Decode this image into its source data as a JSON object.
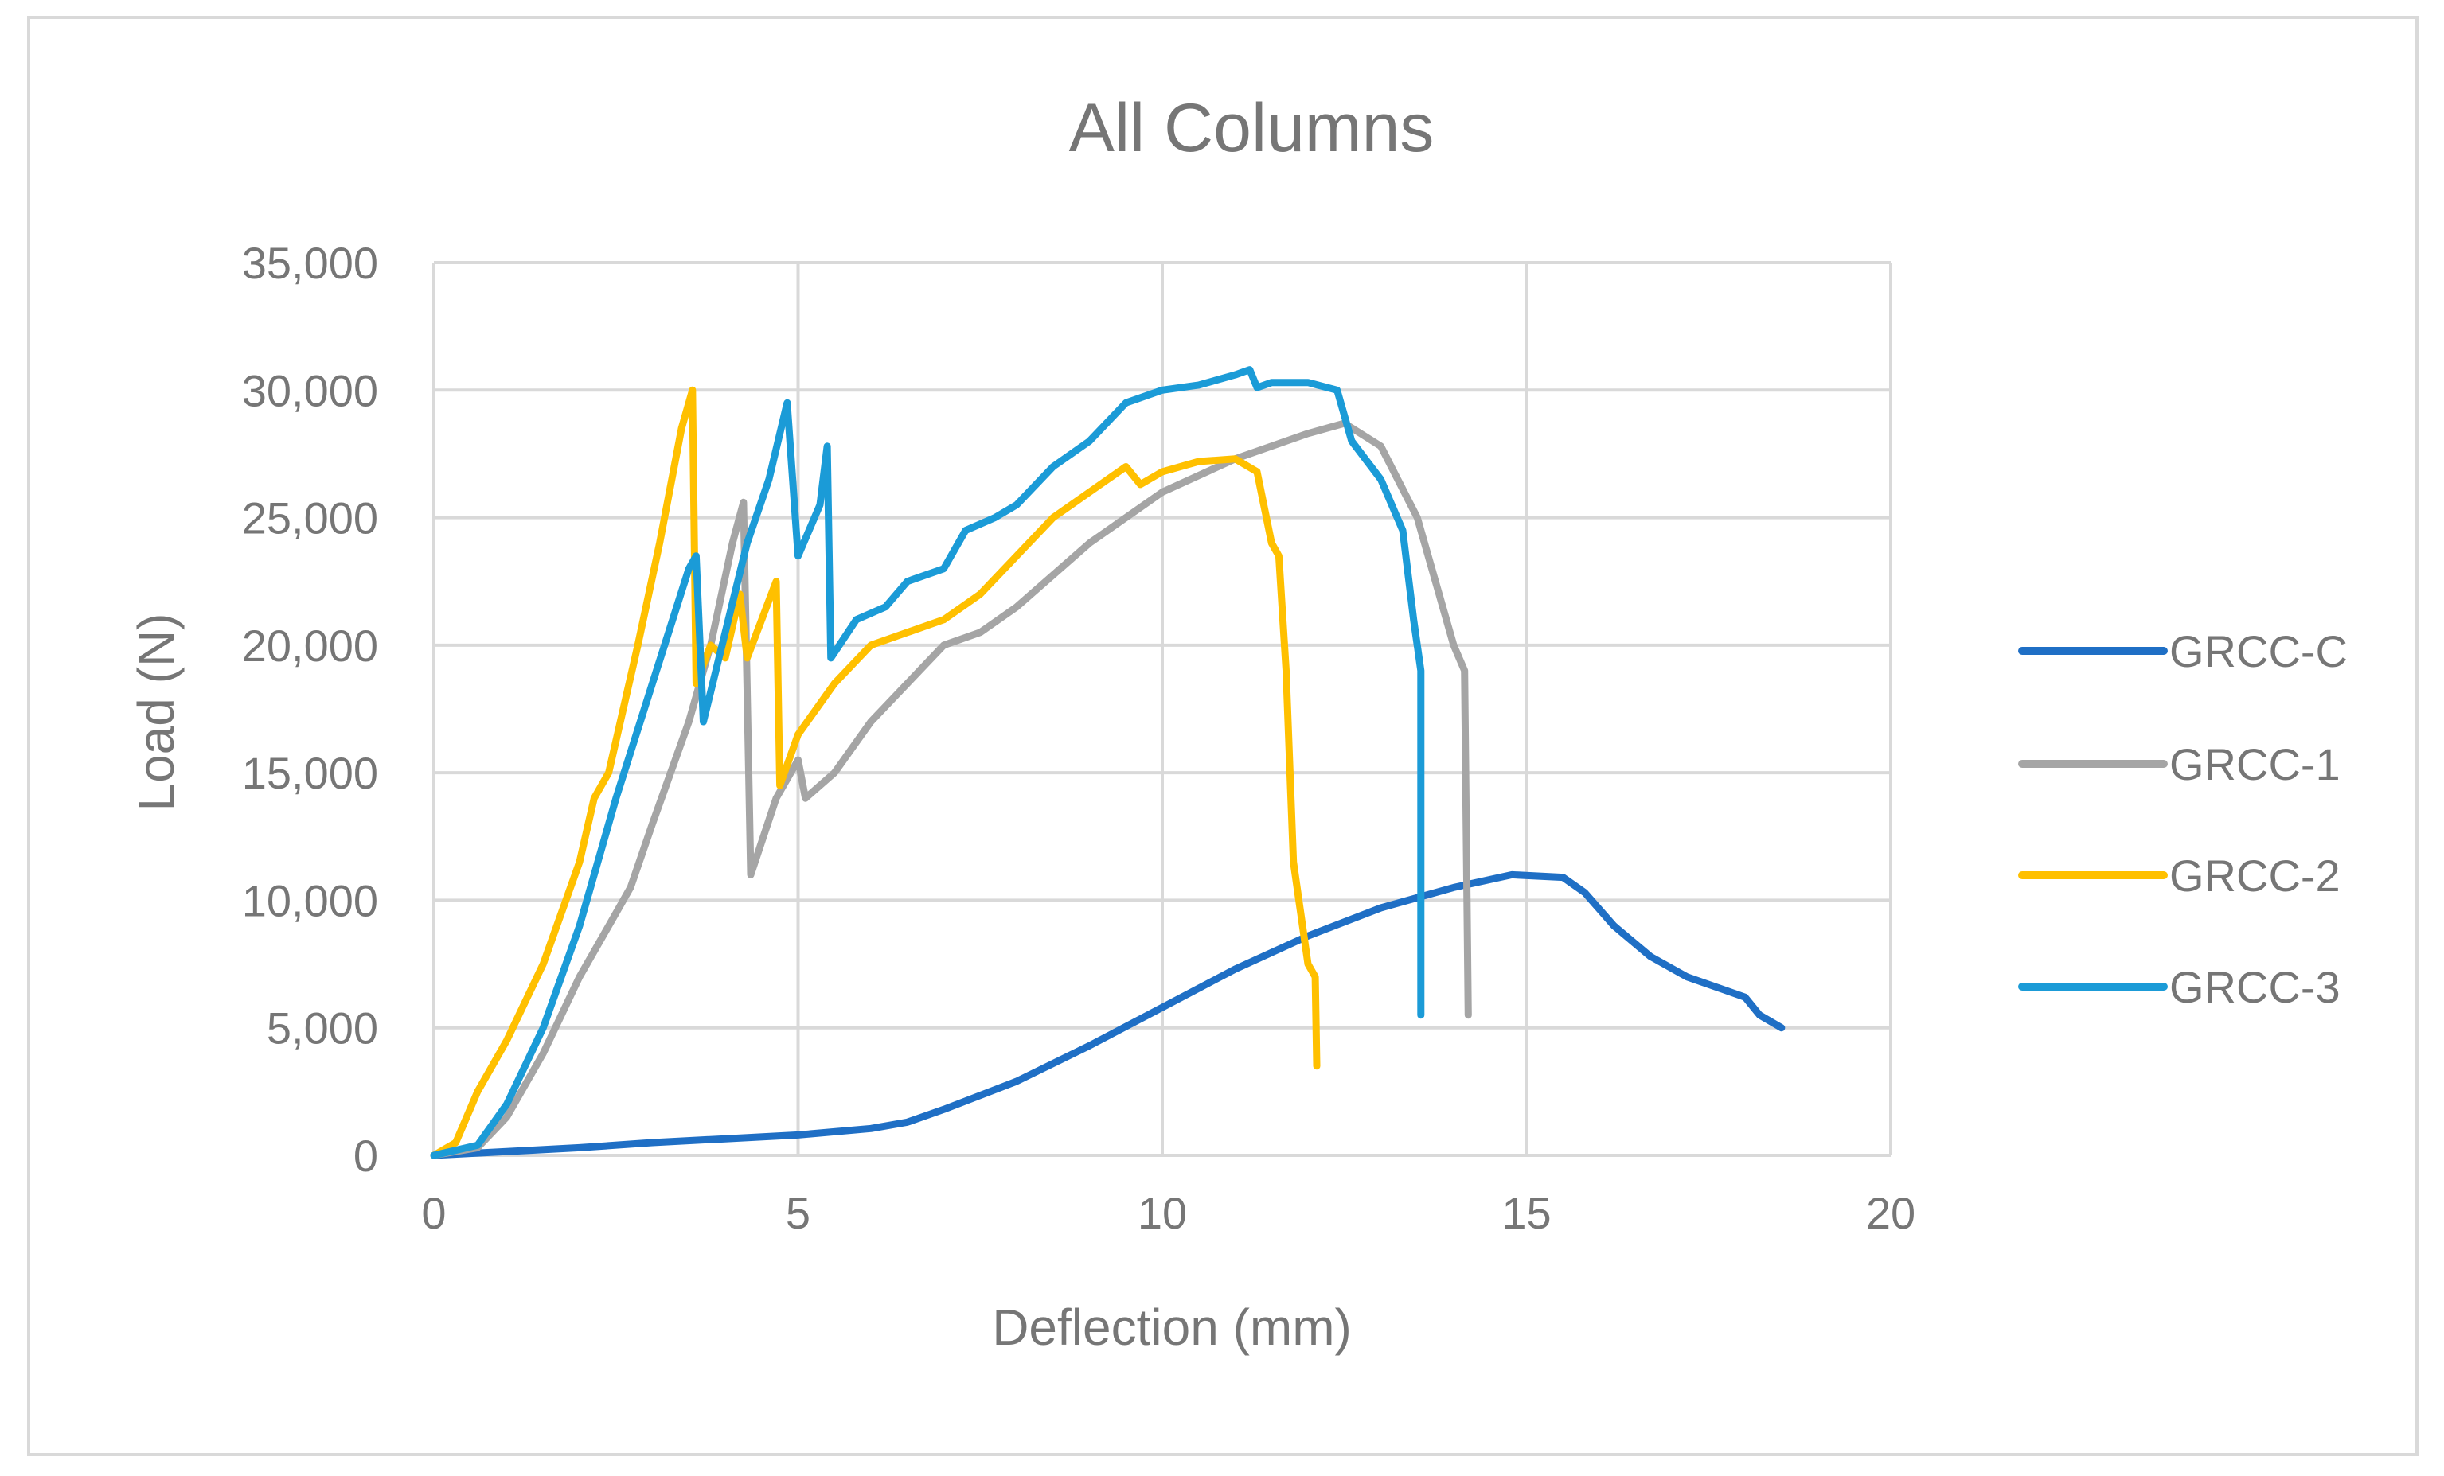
{
  "chart_data": {
    "type": "line",
    "title": "All Columns",
    "xlabel": "Deflection (mm)",
    "ylabel": "Load (N)",
    "xlim": [
      0,
      20
    ],
    "ylim": [
      0,
      35000
    ],
    "x_ticks": [
      0,
      5,
      10,
      15,
      20
    ],
    "x_tick_labels": [
      "0",
      "5",
      "10",
      "15",
      "20"
    ],
    "y_ticks": [
      0,
      5000,
      10000,
      15000,
      20000,
      25000,
      30000,
      35000
    ],
    "y_tick_labels": [
      "0",
      "5,000",
      "10,000",
      "15,000",
      "20,000",
      "25,000",
      "30,000",
      "35,000"
    ],
    "grid": true,
    "legend_position": "right",
    "series": [
      {
        "name": "GRCC-C",
        "color": "#1F6FC5",
        "points": [
          [
            0,
            0
          ],
          [
            1,
            150
          ],
          [
            2,
            300
          ],
          [
            3,
            500
          ],
          [
            4,
            650
          ],
          [
            5,
            800
          ],
          [
            6,
            1050
          ],
          [
            6.5,
            1300
          ],
          [
            7,
            1800
          ],
          [
            8,
            2900
          ],
          [
            9,
            4300
          ],
          [
            10,
            5800
          ],
          [
            11,
            7300
          ],
          [
            12,
            8600
          ],
          [
            13,
            9700
          ],
          [
            14,
            10500
          ],
          [
            14.8,
            11000
          ],
          [
            15.5,
            10900
          ],
          [
            15.8,
            10300
          ],
          [
            16.2,
            9000
          ],
          [
            16.7,
            7800
          ],
          [
            17.2,
            7000
          ],
          [
            18,
            6200
          ],
          [
            18.2,
            5500
          ],
          [
            18.5,
            5000
          ]
        ]
      },
      {
        "name": "GRCC-1",
        "color": "#A5A5A5",
        "points": [
          [
            0,
            0
          ],
          [
            0.6,
            300
          ],
          [
            1,
            1500
          ],
          [
            1.5,
            4000
          ],
          [
            2,
            7000
          ],
          [
            2.5,
            9500
          ],
          [
            2.7,
            10500
          ],
          [
            3,
            13000
          ],
          [
            3.5,
            17000
          ],
          [
            3.8,
            20000
          ],
          [
            4.1,
            24000
          ],
          [
            4.25,
            25600
          ],
          [
            4.35,
            11000
          ],
          [
            4.7,
            14000
          ],
          [
            5,
            15500
          ],
          [
            5.1,
            14000
          ],
          [
            5.5,
            15000
          ],
          [
            6,
            17000
          ],
          [
            6.5,
            18500
          ],
          [
            7,
            20000
          ],
          [
            7.5,
            20500
          ],
          [
            8,
            21500
          ],
          [
            9,
            24000
          ],
          [
            10,
            26000
          ],
          [
            11,
            27300
          ],
          [
            12,
            28300
          ],
          [
            12.5,
            28700
          ],
          [
            13,
            27800
          ],
          [
            13.5,
            25000
          ],
          [
            13.8,
            22000
          ],
          [
            14,
            20000
          ],
          [
            14.15,
            19000
          ],
          [
            14.2,
            5500
          ]
        ]
      },
      {
        "name": "GRCC-2",
        "color": "#FFC000",
        "points": [
          [
            0,
            0
          ],
          [
            0.3,
            500
          ],
          [
            0.6,
            2500
          ],
          [
            1,
            4500
          ],
          [
            1.5,
            7500
          ],
          [
            2,
            11500
          ],
          [
            2.2,
            14000
          ],
          [
            2.4,
            15000
          ],
          [
            2.8,
            20000
          ],
          [
            3.1,
            24000
          ],
          [
            3.4,
            28500
          ],
          [
            3.55,
            30000
          ],
          [
            3.6,
            18500
          ],
          [
            3.8,
            20000
          ],
          [
            4,
            19500
          ],
          [
            4.2,
            22000
          ],
          [
            4.3,
            19500
          ],
          [
            4.5,
            21000
          ],
          [
            4.7,
            22500
          ],
          [
            4.75,
            14500
          ],
          [
            5,
            16500
          ],
          [
            5.5,
            18500
          ],
          [
            6,
            20000
          ],
          [
            6.5,
            20500
          ],
          [
            7,
            21000
          ],
          [
            7.5,
            22000
          ],
          [
            8,
            23500
          ],
          [
            8.5,
            25000
          ],
          [
            9,
            26000
          ],
          [
            9.5,
            27000
          ],
          [
            9.7,
            26300
          ],
          [
            10,
            26800
          ],
          [
            10.5,
            27200
          ],
          [
            11,
            27300
          ],
          [
            11.3,
            26800
          ],
          [
            11.5,
            24000
          ],
          [
            11.6,
            23500
          ],
          [
            11.7,
            19000
          ],
          [
            11.8,
            11500
          ],
          [
            12,
            7500
          ],
          [
            12.1,
            7000
          ],
          [
            12.12,
            3500
          ]
        ]
      },
      {
        "name": "GRCC-3",
        "color": "#1B9BD7",
        "points": [
          [
            0,
            0
          ],
          [
            0.6,
            400
          ],
          [
            1,
            2000
          ],
          [
            1.5,
            5000
          ],
          [
            2,
            9000
          ],
          [
            2.5,
            14000
          ],
          [
            3,
            18500
          ],
          [
            3.5,
            23000
          ],
          [
            3.6,
            23500
          ],
          [
            3.7,
            17000
          ],
          [
            4,
            20500
          ],
          [
            4.3,
            24000
          ],
          [
            4.6,
            26500
          ],
          [
            4.85,
            29500
          ],
          [
            5,
            23500
          ],
          [
            5.3,
            25500
          ],
          [
            5.4,
            27800
          ],
          [
            5.45,
            19500
          ],
          [
            5.8,
            21000
          ],
          [
            6.2,
            21500
          ],
          [
            6.5,
            22500
          ],
          [
            7,
            23000
          ],
          [
            7.3,
            24500
          ],
          [
            7.7,
            25000
          ],
          [
            8,
            25500
          ],
          [
            8.5,
            27000
          ],
          [
            9,
            28000
          ],
          [
            9.5,
            29500
          ],
          [
            10,
            30000
          ],
          [
            10.5,
            30200
          ],
          [
            11,
            30600
          ],
          [
            11.2,
            30800
          ],
          [
            11.3,
            30100
          ],
          [
            11.5,
            30300
          ],
          [
            12,
            30300
          ],
          [
            12.4,
            30000
          ],
          [
            12.6,
            28000
          ],
          [
            13,
            26500
          ],
          [
            13.3,
            24500
          ],
          [
            13.45,
            21000
          ],
          [
            13.55,
            19000
          ],
          [
            13.55,
            5500
          ]
        ]
      }
    ]
  }
}
